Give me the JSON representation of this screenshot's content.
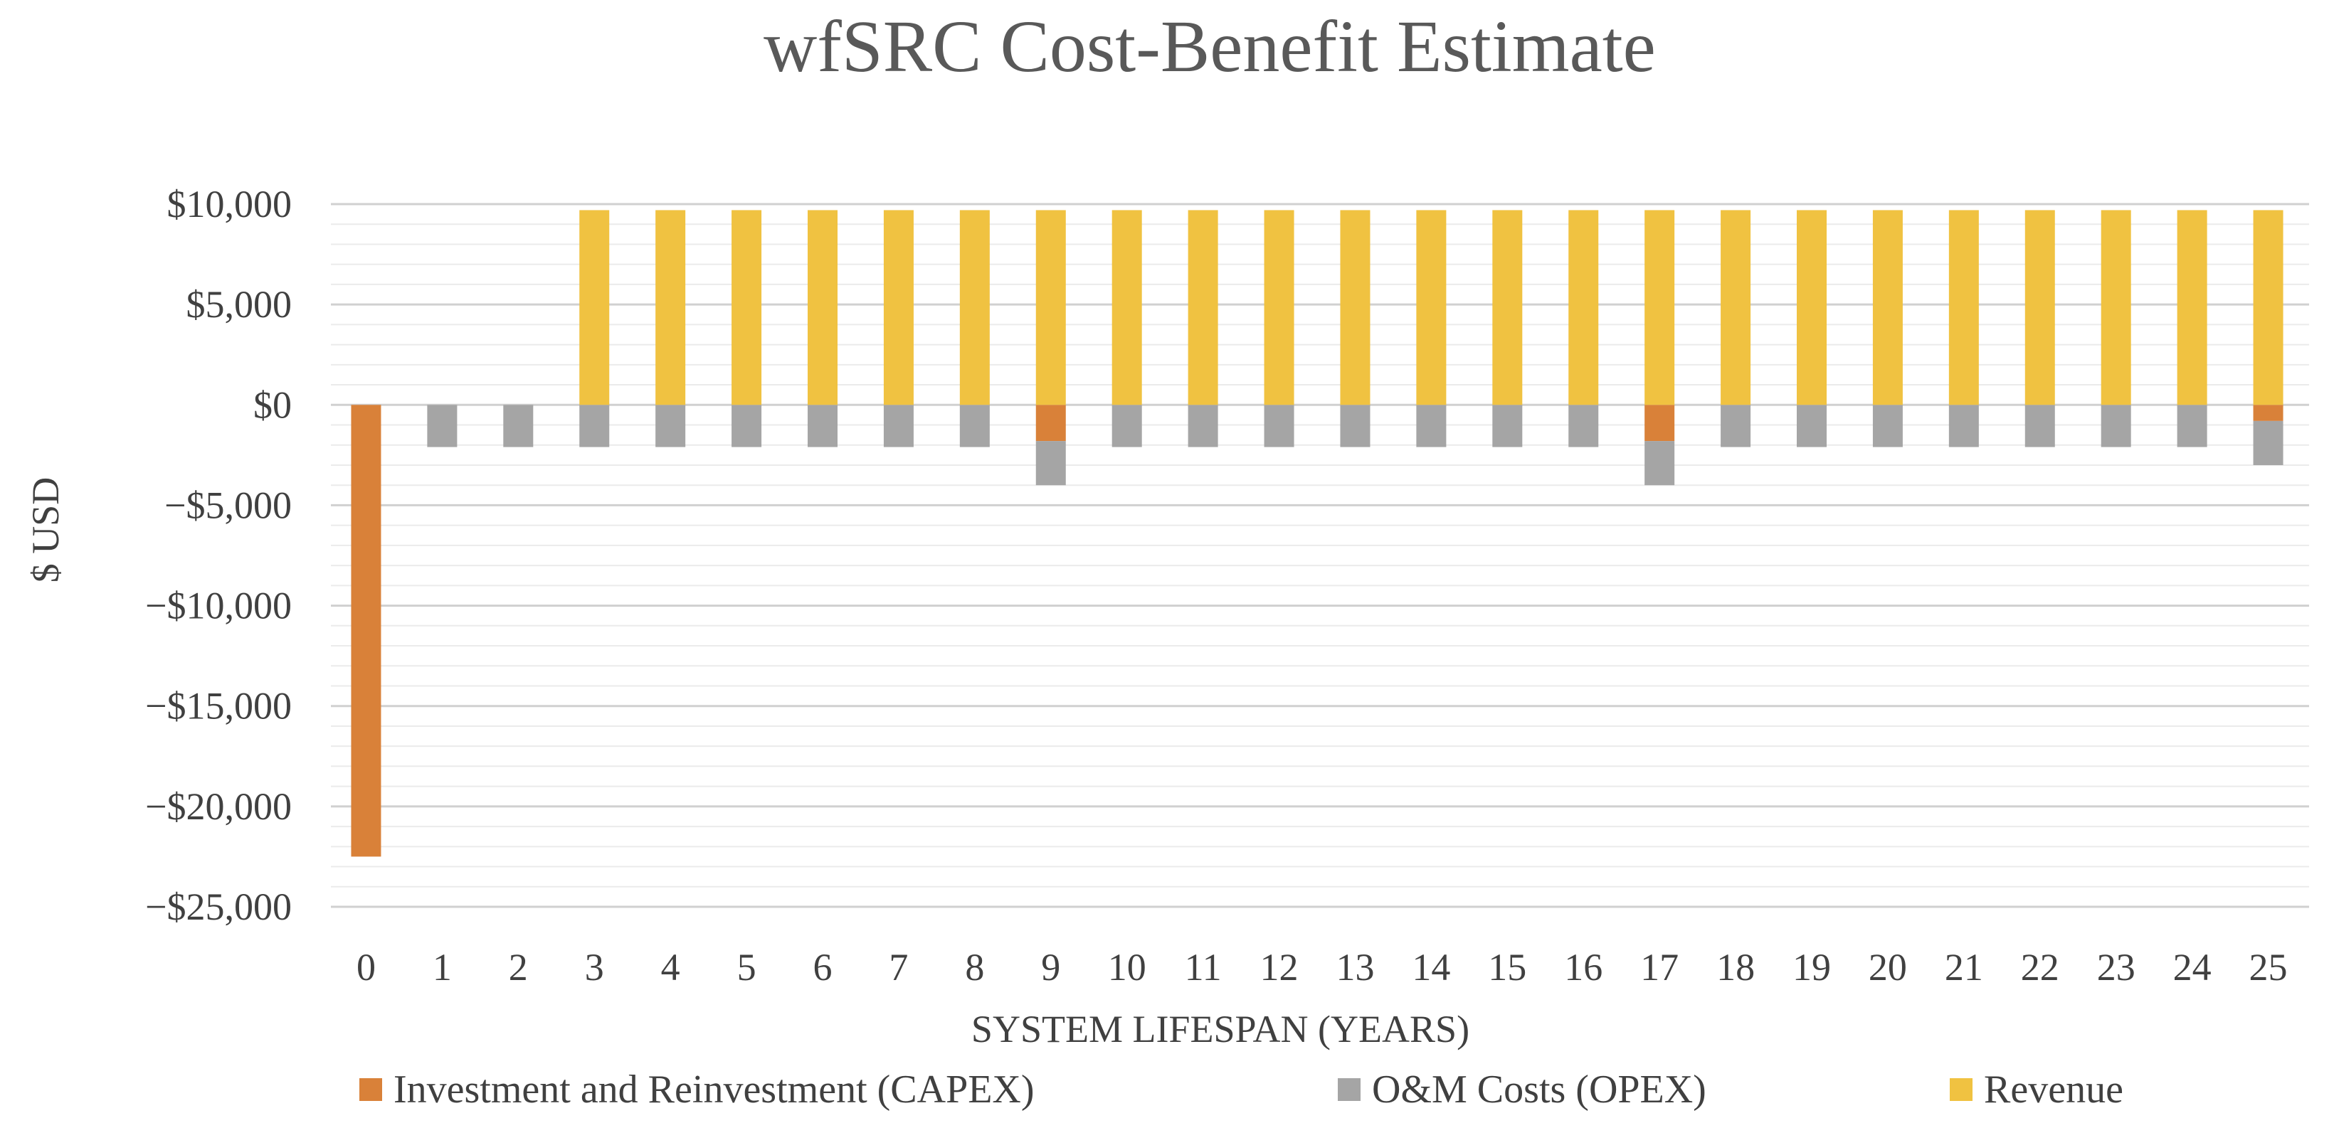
{
  "chart_data": {
    "type": "bar",
    "stacked": true,
    "title": "wfSRC Cost-Benefit Estimate",
    "xlabel": "SYSTEM LIFESPAN (YEARS)",
    "ylabel": "$ USD",
    "ylim": [
      -25000,
      10000
    ],
    "y_ticks": [
      10000,
      5000,
      0,
      -5000,
      -10000,
      -15000,
      -20000,
      -25000
    ],
    "y_tick_labels": [
      "$10,000",
      "$5,000",
      "$0",
      "−$5,000",
      "−$10,000",
      "−$15,000",
      "−$20,000",
      "−$25,000"
    ],
    "minor_grid_step": 1000,
    "grid": true,
    "legend_position": "bottom",
    "categories": [
      "0",
      "1",
      "2",
      "3",
      "4",
      "5",
      "6",
      "7",
      "8",
      "9",
      "10",
      "11",
      "12",
      "13",
      "14",
      "15",
      "16",
      "17",
      "18",
      "19",
      "20",
      "21",
      "22",
      "23",
      "24",
      "25"
    ],
    "series": [
      {
        "name": "Investment and Reinvestment (CAPEX)",
        "color": "#D98139",
        "values": [
          -22500,
          0,
          0,
          0,
          0,
          0,
          0,
          0,
          0,
          -1800,
          0,
          0,
          0,
          0,
          0,
          0,
          0,
          -1800,
          0,
          0,
          0,
          0,
          0,
          0,
          0,
          -800
        ]
      },
      {
        "name": "O&M Costs (OPEX)",
        "color": "#A5A5A5",
        "values": [
          0,
          -2100,
          -2100,
          -2100,
          -2100,
          -2100,
          -2100,
          -2100,
          -2100,
          -2200,
          -2100,
          -2100,
          -2100,
          -2100,
          -2100,
          -2100,
          -2100,
          -2200,
          -2100,
          -2100,
          -2100,
          -2100,
          -2100,
          -2100,
          -2100,
          -2200
        ]
      },
      {
        "name": "Revenue",
        "color": "#F0C241",
        "values": [
          0,
          0,
          0,
          9700,
          9700,
          9700,
          9700,
          9700,
          9700,
          9700,
          9700,
          9700,
          9700,
          9700,
          9700,
          9700,
          9700,
          9700,
          9700,
          9700,
          9700,
          9700,
          9700,
          9700,
          9700,
          9700
        ]
      }
    ]
  }
}
